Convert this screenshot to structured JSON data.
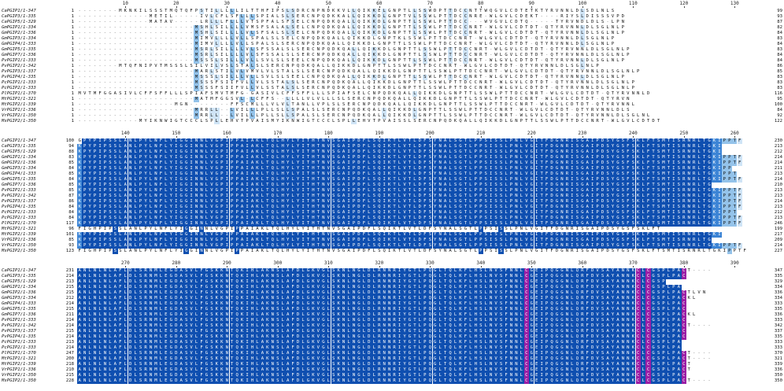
{
  "colors": {
    "c0": "#ffffff",
    "c1": "#cfe4f6",
    "c2": "#94c3ea",
    "c3": "#3c84d5",
    "c4": "#0f4fb0",
    "c5": "#9b1fa5"
  },
  "names": [
    "CaPGIP1/1-347",
    "CaPGIP3/1-335",
    "CaPGIP5/1-329",
    "GmPGIP1/1-334",
    "GmPGIP2/1-336",
    "GmPGIP3/1-334",
    "GmPGIP4/1-333",
    "GmPGIP5/1-335",
    "GmPGIP7/1-336",
    "PvPGIP1/1-333",
    "PvPGIP2/1-342",
    "PvPGIP3/1-337",
    "PvPGIP4/1-335",
    "PcPGIP1/1-333",
    "PcPGIP2/1-333",
    "PlPGIP1/1-370",
    "MtPGIP1/1-321",
    "MtPGIP2/1-339",
    "VrPGIP1/1-336",
    "VrPGIP2/1-350",
    "MsPGIP2/1-350"
  ],
  "blocks": [
    {
      "ruler": [
        10,
        20,
        30,
        40,
        50,
        60,
        70,
        80,
        90,
        100,
        110,
        120,
        130
      ],
      "start": [
        1,
        1,
        1,
        1,
        1,
        1,
        1,
        1,
        1,
        1,
        1,
        1,
        1,
        1,
        1,
        1,
        1,
        1,
        1,
        1,
        1
      ],
      "end": [
        99,
        93,
        87,
        82,
        84,
        83,
        84,
        83,
        84,
        84,
        86,
        85,
        83,
        83,
        83,
        116,
        95,
        100,
        84,
        92,
        122
      ],
      "seq": [
        "--------MKNKILSSSTMQTQFPSTILLLLLILTTHFIPSLSDRCNPNDKKVLLQIKKELGNPTLLSSWDPTTDCCNTTWQGVLCDTETKTYRVNNLDLSDLNLS",
        "--------------METIL-----IVLCFLSFLLLSPIALSLSERCNPQDKKALLQIKKDLGNPTVLSSWLPTTDCCNRE-WLGVLCDEKT----RIYSLDISSSVPD",
        "--------------MATAV-----LRLLLFLLLVTSPFALSFSELCNPQDKQALLQIKKDLGNPTTLSSWLPTTDCC---WVGVLCDTQ-----TYRVNDLDLS-LPN",
        "-----------------------MSHLSILLLLVMSFSALALSELCNPQDKQALLQIKKDLGNPTTLSSWLPTTDCCNRT-WLGVLCDTDT-QTYRVNNLDLSGLNLP",
        "-----------------------MSHLSILLLLVLSFSALSLSELCNPQDKQALLQIKKDLGNPTTLSSWLPTTDCCNRT-WLGVLCDTDT-QTYRVNNLDLSGLNLP",
        "-----------------------MIMVLLLLVLLSPALSLSELCNPQDKQALLQIKKDLGNPTKLSSWLPTTDCCNRT-WLGVLCDTDT-QTYRVNNLDLSGLNLP",
        "-----------------------MIMVLLLLVLLSPALSLSERCNPQDKQALLQIKKDLGNPTTLSSWLPTTDCCNRT-WLGVLCDTDT-QTYRVNNLDLSGLNLP",
        "-----------------------MSRLSILLLLVLSFSSALSLSERCNPQDKQALLQIKKDLGNPTTLSSWLPTTDCCNRT-WLGVLCDTDT-QTYRVNNLDLSGLNLP",
        "-----------------------MSRLSILLLLVLSFSSALSLSERCNPQDKQALLQIKKDLGNPTTLSSWLPTTDCCNRT-WLGVLCDTDT-QTYRVNNLDLSGLNLP",
        "-----------------------MSSSLSILLLVLLSVLSLSEELCNPQDKQALLQIKKDLGNPTTLSSWLPTTDCCNRT-WLGVLCDTDT-QTYRVNNLDLSGLNLP",
        "--------MTQFNIPVTMSSSLSILVILVSLSTALSLSERCNPQDKQALLQIKKDLGNPTTLSSWLPTTDCCNRT-WLGVLCDTDT-QTYRVNNLDLSGLNLP",
        "-----------------------MARLSTILVLVMVLVLSTALSLSERCNPQDKQALLQIKKDLGNPTTLSSWLPTTDCCNRT-WLGVLCDTDT-QTYRVNNLDLSGLNLP",
        "-----------------------MSSSLSILLLVLLSVLSLSEELCNPQDKQALLQIKKDLGNPTTLSSWLPTTDCCNRT-WLGVLCDTDT-QTYRVNNLDLSGLNLP",
        "-----------------------MSSSFSIIFVLLVLSSTALSLSERCNPQDKQALLQIKKDLGNPTTLSSWLPTTDCCNRT-WLGVLCDTDT-QTYRVNNLDLSGLNLP",
        "-----------------------MSSSFSIIFVLLVLSSTALSLSERCNPQDKQALLQIKKDLGNPTTLSSWLPTTDCCNRT-WLGVLCDTDT-QTYRVNNLDLSGLNLP",
        "MVTMFGGASIVLCFFSFFLLLSPIAFSMVTMFG-GASIVLCFFSFFLLLSPIAFSELCNPQDKQALLQIKKDLGNPTTLSSWLPTTDCCNRT-WLGVLCDTDT-QTYRVNNLD",
        "-----------------------MATMFGGSVL-LCFFS--LLLLVLVLLLSLSERCNPQDKQALLQIKKDLGNPTTLSSWLPTTDCCNRT-WLGVLCDTDT-QTYRVN",
        "-------------------MGN--------FFSCMLLLVLVLTANLLVPLSLSERCNPQDKQALLQIKKDLGNPTTLSSWLPTTDCCNRT-WLGVLCDTDT-QTYRVNNL",
        "-----------------------MRRLL--LVILLLPLLSLLSPALSLSERCNPQDKQALLQIKKDLGNPTTLSSWLPTTDCCNRT-WLGVLCDTDT-QTYRVNNLDLS",
        "-----------------------MRRLL--LVILLLPLLSLLSPALSLSERCNPQDKQALLQIKKDLGNPTTLSSWLPTTDCCNRT-WLGVLCDTDT-QTYRVNNLDLSGLNL",
        "------------MYIKNWIGTCCCLSPLLEHVTPVAISMYIKNWIGTCCCLSPLLEHVTPVAISSLSERCNPQDKQALLQIKKDLGNPTTLSSWLPTTDCCNRT-WLGVLCDTDT"
      ]
    },
    {
      "ruler": [
        140,
        150,
        160,
        170,
        180,
        190,
        200,
        210,
        220,
        230,
        240,
        250,
        260
      ],
      "start": [
        100,
        94,
        88,
        83,
        85,
        84,
        85,
        84,
        85,
        85,
        87,
        86,
        84,
        84,
        84,
        117,
        96,
        101,
        85,
        93,
        123
      ],
      "end": [
        230,
        213,
        212,
        214,
        214,
        211,
        213,
        214,
        210,
        213,
        213,
        214,
        213,
        212,
        213,
        246,
        199,
        217,
        209,
        214,
        227
      ],
      "seq": [
        "GPYPIPSSLANLPYLNFLYIGGINNLVGPIPPAIAKLTQLHYLYITHTNVSGAIPDFLSQIKTLVTLDFSYNALSGTLPPSISSLPNLVGITFDGNRISGAIPDSYGSFSKLFTSMTISRNRLTGKIPPTF",
        "KPYPIPSSLANLPYLNFLYIGGINNLVGPIPPAIAKLTQLHYLYITHTNVSGAIPDFLSQIKTLVTLDFSYNALSGTLPPSISSLPNLVGITFDGNRISGAIPDSYGSFSKLFTSMTISRNRLTGKI",
        "KPYPIPSSLANLPYLNFLYIGGINNLVGPIPPAIAKLTQLHYLYITHTNVSGAIPDFLSQIKTLVTLDFSYNALSGTLPPSISSLPNLVGITFDGNRISGAIPDSYGSFSKLFTSMTISRNRLTGKI",
        "KPYPIPSSLANLPYLNFLYIGGINNLVGPIPPAIAKLTQLHYLYITHTNVSGAIPDFLSQIKTLVTLDFSYNALSGTLPPSISSLPNLVGITFDGNRISGAIPDSYGSFSKLFTSMTISRNRLTGKIPPTF",
        "KPYPIPSSLANLPYLNFLYIGGINNLVGPIPPAIAKLTQLHYLYITHTNVSGAIPDFLSQIKTLVTLDFSYNALSGTLPPSISSLPNLVGITFDGNRISGAIPDSYGSFSKLFTSMTISRNRLTGKIPPTF",
        "KPYPIPSSLANLPYLNFLYIGGINNLVGPIPPAIAKLTQLHYLYITHTNVSGAIPDFLSQIKTLVTLDFSYNALSGTLPPSISSLPNLVGITFDGNRISGAIPDSYGSFSKLFTSMTISRNRLTGKIPP",
        "KPYPIPSSLANLPYLNFLYIGGINNLVGPIPPAIAKLTQLHYLYITHTNVSGAIPDFLSQIKTLVTLDFSYNALSGTLPPSISSLPNLVGITFDGNRISGAIPDSYGSFSKLFTSMTISRNRLTGKIPPT",
        "KPYPIPSSLANLPYLNFLYIGGINNLVGPIPPAIAKLTQLHYLYITHTNVSGAIPDFLSQIKTLVTLDFSYNALSGTLPPSISSLPNLVGITFDGNRISGAIPDSYGSFSKLFTSMTISRNRLTGKIPPTF",
        "KPYPIPSSLANLPYLNFLYIGGINNLVGPIPPAIAKLTQLHYLYITHTNVSGAIPDFLSQIKTLVTLDFSYNALSGTLPPSISSLPNLVGITFDGNRISGAIPDSYGSFSKLFTSMTISRNRLTG",
        "KPYPIPSSLANLPYLNFLYIGGINNLVGPIPPAIAKLTQLHYLYITHTNVSGAIPDFLSQIKTLVTLDFSYNALSGTLPPSISSLPNLVGITFDGNRISGAIPDSYGSFSKLFTSMTISRNRLTGKIPPTF",
        "KPYPIPSSLANLPYLNFLYIGGINNLVGPIPPAIAKLTQLHYLYITHTNVSGAIPDFLSQIKTLVTLDFSYNALSGTLPPSISSLPNLVGITFDGNRISGAIPDSYGSFSKLFTSMTISRNRLTGKIPPTF",
        "KPYPIPSSLANLPYLNFLYIGGINNLVGPIPPAIAKLTQLHYLYITHTNVSGAIPDFLSQIKTLVTLDFSYNALSGTLPPSISSLPNLVGITFDGNRISGAIPDSYGSFSKLFTSMTISRNRLTGKIPPTF",
        "KPYPIPSSLANLPYLNFLYIGGINNLVGPIPPAIAKLTQLHYLYITHTNVSGAIPDFLSQIKTLVTLDFSYNALSGTLPPSISSLPNLVGITFDGNRISGAIPDSYGSFSKLFTSMTISRNRLTGKIPPTF",
        "KPYPIPSSLANLPYLNFLYIGGINNLVGPIPPAIAKLTQLHYLYITHTNVSGAIPDFLSQIKTLVTLDFSYNALSGTLPPSISSLPNLVGITFDGNRISGAIPDSYGSFSKLFTSMTISRNRLTGKIPPT",
        "KPYPIPSSLANLPYLNFLYIGGINNLVGPIPPAIAKLTQLHYLYITHTNVSGAIPDFLSQIKTLVTLDFSYNALSGTLPPSISSLPNLVGITFDGNRISGAIPDSYGSFSKLFTSMTISRNRLTGKIPPTF",
        "KPYPIPSSLANLPYLNFLYIGGINNLVGPIPPAIAKLTQLHYLYITHTNVSGAIPDFLSQIKTLVTLDFSYNALSGTLPPSISSLPNLVGITFDGNRISGAIPDSYGSFSKLFTSMTISRNRLTGKIPPTF",
        "FIGHPIPSSLANLPYLNFLYIGGINNLVGPIPPAIAKLTQLHYLYITHTNVSGAIPDFLSQIKTLVTLDFSYNALSGTLPPSISSLPNLVGITFDGNRISGAIPDSYGSFSKLFT",
        "KPYPIPSSLANLPYLNFLYIGGINNLVGPIPPAIAKLTQLHYLYITHTNVSGAIPDFLSQIKTLVTLDFSYNALSGTLPPSISSLPNLVGITFDGNRISGAIPDSYGSFSKLFTSMTISRNRLTGKI",
        "KPYPIPSSLANLPYLNFLYIGGINNLVGPIPPAIAKLTQLHYLYITHTNVSGAIPDFLSQIKTLVTLDFSYNALSGTLPPSISSLPNLVGITFDGNRISGAIPDSYGSFSKLFTSMTISRNRLTG",
        "KPYPIPSSLANLPYLNFLYIGGINNLVGPIPPAIAKLTQLHYLYITHTNVSGAIPDFLSQIKTLVTLDFSYNALSGTLPPSISSLPNLVGITFDGNRISGAIPDSYGSFSKLFTSMTISRNRLTGKIPPTF",
        "FIGHPIPSSLANLPYLNFLYIGGINNLVGPIPPAIAKLTQLHYLYITHTNVSGAIPDFLSQIKTLVTLDFSYNALSGTLPPSISSLPNLVGITFDGNRISGAIPDSYGSFSKLFTSMTISRNRLTGKIPPTF"
      ]
    },
    {
      "ruler": [
        270,
        280,
        290,
        300,
        310,
        320,
        330,
        340,
        350,
        360,
        370,
        380,
        390
      ],
      "start": [
        231,
        214,
        213,
        215,
        215,
        212,
        214,
        215,
        211,
        214,
        214,
        215,
        214,
        213,
        214,
        247,
        200,
        218,
        210,
        215,
        228
      ],
      "end": [
        347,
        335,
        329,
        334,
        336,
        334,
        333,
        335,
        336,
        333,
        342,
        337,
        335,
        333,
        333,
        370,
        321,
        339,
        336,
        350,
        350
      ],
      "seq": [
        "ANLNLNLAFLDLSRNMLEGDASVLFGSKKNTQKIHLAKNSLAFDLGKVGLSKNLNGLDLRNNRIYGTLPQGLTQLKFLHSLNVSFNNLCGEIPQGGNLQRFDVSAYANNKCLCGSPLPACT----",
        "ANLNLNLAFLDLSRNMLEGDASVLFGSKKNTQKIHLAKNSLAFDLGKVGLSKNLNGLDLRNNRIYGTLPQGLTQLKFLHSLNVSFNNLCGEIPQGGNLQRFDVSAYANNKCLCGSPLPAC",
        "ANLNLNLAFLDLSRNMLEGDASVLFGSKKNTQKIHLAKNSLAFDLGKVGLSKNLNGLDLRNNRIYGTLPQGLTQLKFLHSLNVSFNNLCGEIPQGGNLQRFDVSAYANNKCLCGSP",
        "ANLNLNLAFLDLSRNMLEGDASVLFGSKKNTQKIHLAKNSLAFDLGKVGLSKNLNGLDLRNNRIYGTLPQGLTQLKFLHSLNVSFNNLCGEIPQGGNLQRFDVSAYANNKCLCGSPLPA",
        "ANLNLNLAFLDLSRNMLEGDASVLFGSKKNTQKIHLAKNSLAFDLGKVGLSKNLNGLDLRNNRIYGTLPQGLTQLKFLHSLNVSFNNLCGEIPQGGNLQRFDVSAYANNKCLCGSPLPACTLVN",
        "ANLNLNLAFLDLSRNMLEGDASVLFGSKKNTQKIHLAKNSLAFDLGKVGLSKNLNGLDLRNNRIYGTLPQGLTQLKFLHSLNVSFNNLCGEIPQGGNLQRFDVSAYANNKCLCGSPLPACKL",
        "ANLNLNLAFLDLSRNMLEGDASVLFGSKKNTQKIHLAKNSLAFDLGKVGLSKNLNGLDLRNNRIYGTLPQGLTQLKFLHSLNVSFNNLCGEIPQGGNLQRFDVSAYANNKCLCGSPLPAC",
        "ANLNLNLAFLDLSRNMLEGDASVLFGSKKNTQKIHLAKNSLAFDLGKVGLSKNLNGLDLRNNRIYGTLPQGLTQLKFLHSLNVSFNNLCGEIPQGGNLQRFDVSAYANNKCLCGSPLPAC",
        "ANLNLNLAFLDLSRNMLEGDASVLFGSKKNTQKIHLAKNSLAFDLGKVGLSKNLNGLDLRNNRIYGTLPQGLTQLKFLHSLNVSFNNLCGEIPQGGNLQRFDVSAYANNKCLCGSPLPACKL",
        "ANLNLNLAFLDLSRNMLEGDASVLFGSKKNTQKIHLAKNSLAFDLGKVGLSKNLNGLDLRNNRIYGTLPQGLTQLKFLHSLNVSFNNLCGEIPQGGNLQRFDVSAYANNKCLCGSPLPAC",
        "ANLNLNLAFLDLSRNMLEGDASVLFGSKKNTQKIHLAKNSLAFDLGKVGLSKNLNGLDLRNNRIYGTLPQGLTQLKFLHSLNVSFNNLCGEIPQGGNLQRFDVSAYANNKCLCGSPLPACT----",
        "ANLNLNLAFLDLSRNMLEGDASVLFGSKKNTQKIHLAKNSLAFDLGKVGLSKNLNGLDLRNNRIYGTLPQGLTQLKFLHSLNVSFNNLCGEIPQGGNLQRFDVSAYANNKCLCGSPLPAC",
        "ANLNLNLAFLDLSRNMLEGDASVLFGSKKNTQKIHLAKNSLAFDLGKVGLSKNLNGLDLRNNRIYGTLPQGLTQLKFLHSLNVSFNNLCGEIPQGGNLQRFDVSAYANNKCLCGSPLPAC",
        "ANLNLNLAFLDLSRNMLEGDASVLFGSKKNTQKIHLAKNSLAFDLGKVGLSKNLNGLDLRNNRIYGTLPQGLTQLKFLHSLNVSFNNLCGEIPQGGNLQRFDVSAYANNKCLCGSPLPA",
        "ANLNLNLAFLDLSRNMLEGDASVLFGSKKNTQKIHLAKNSLAFDLGKVGLSKNLNGLDLRNNRIYGTLPQGLTQLKFLHSLNVSFNNLCGEIPQGGNLQRFDVSAYANNKCLCGSPLPA",
        "ANLNLNLAFLDLSRNMLEGDASVLFGSKKNTQKIHLAKNSLAFDLGKVGLSKNLNGLDLRNNRIYGTLPQGLTQLKFLHSLNVSFNNLCGEIPQGGNLQRFDVSAYANNKCLCGSPLPACT----",
        "ANLNLNLAFLDLSRNMLEGDASVLFGSKKNTQKIHLAKNSLAFDLGKVGLSKNLNGLDLRNNRIYGTLPQGLTQLKFLHSLNVSFNNLCGEIPQGGNLQRFDVSAYANNKCLCGSPLPACT----",
        "ANLNLNLAFLDLSRNMLEGDASVLFGSKKNTQKIHLAKNSLAFDLGKVGLSKNLNGLDLRNNRIYGTLPQGLTQLKFLHSLNVSFNNLCGEIPQGGNLQRFDVSAYANNKCLCGSPLPACT",
        "ANLNLNLAFLDLSRNMLEGDASVLFGSKKNTQKIHLAKNSLAFDLGKVGLSKNLNGLDLRNNRIYGTLPQGLTQLKFLHSLNVSFNNLCGEIPQGGNLQRFDVSAYANNKCLCGSPLPACT",
        "ANLNLNLAFLDLSRNMLEGDASVLFGSKKNTQKIHLAKNSLAFDLGKVGLSKNLNGLDLRNNRIYGTLPQGLTQLKFLHSLNVSFNNLCGEIPQGGNLQRFDVSAYANNKCLCGSPLPAC",
        "ANLNLNLAFLDLSRNMLEGDASVLFGSKKNTQKIHLAKNSLAFDLGKVGLSKNLNGLDLRNNRIYGTLPQGLTQLKFLHSLNVSFNNLCGEIPQGGNLQRFDVSAYANNKCLCGSPLPACT----"
      ]
    }
  ]
}
